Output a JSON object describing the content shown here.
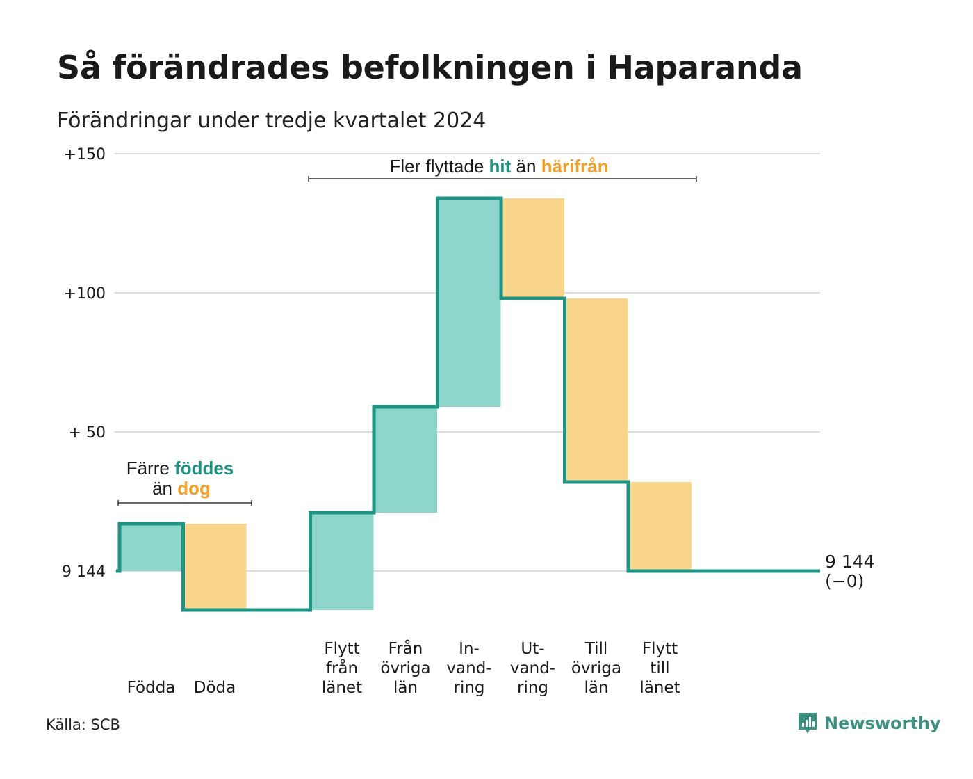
{
  "title": "Så förändrades befolkningen i Haparanda",
  "subtitle": "Förändringar under tredje kvartalet 2024",
  "source": "Källa: SCB",
  "brand": {
    "name": "Newsworthy",
    "icon": "newsworthy-logo-icon",
    "color": "#3a8f7f"
  },
  "colors": {
    "increase": "#8ed5cc",
    "decrease": "#fad58c",
    "line": "#1f9384",
    "accent_teal": "#1f9384",
    "accent_orange": "#f0a02b",
    "grid": "#dddddd"
  },
  "chart_data": {
    "type": "waterfall",
    "title": "Så förändrades befolkningen i Haparanda",
    "subtitle": "Förändringar under tredje kvartalet 2024",
    "base_label": "9 144",
    "ylim": [
      -20,
      150
    ],
    "grid": true,
    "y_ticks": [
      {
        "value": 150,
        "label": "+150"
      },
      {
        "value": 100,
        "label": "+100"
      },
      {
        "value": 50,
        "label": "+ 50"
      },
      {
        "value": 0,
        "label": "9 144"
      }
    ],
    "steps": [
      {
        "name": "Födda",
        "label_lines": [
          "Födda"
        ],
        "value": 17,
        "kind": "increase"
      },
      {
        "name": "Döda",
        "label_lines": [
          "Döda"
        ],
        "value": -31,
        "kind": "decrease"
      },
      {
        "name": "Flytt från länet",
        "label_lines": [
          "Flytt",
          "från",
          "länet"
        ],
        "value": 35,
        "kind": "increase",
        "slot": 3
      },
      {
        "name": "Från övriga län",
        "label_lines": [
          "Från",
          "övriga",
          "län"
        ],
        "value": 38,
        "kind": "increase",
        "slot": 4
      },
      {
        "name": "Invandring",
        "label_lines": [
          "In-",
          "vand-",
          "ring"
        ],
        "value": 75,
        "kind": "increase",
        "slot": 5
      },
      {
        "name": "Utvandring",
        "label_lines": [
          "Ut-",
          "vand-",
          "ring"
        ],
        "value": -36,
        "kind": "decrease",
        "slot": 6
      },
      {
        "name": "Till övriga län",
        "label_lines": [
          "Till",
          "övriga",
          "län"
        ],
        "value": -66,
        "kind": "decrease",
        "slot": 7
      },
      {
        "name": "Flytt till länet",
        "label_lines": [
          "Flytt",
          "till",
          "länet"
        ],
        "value": -32,
        "kind": "decrease",
        "slot": 8
      }
    ],
    "end_label": [
      "9 144",
      "(−0)"
    ],
    "annotations": [
      {
        "parts": [
          {
            "text": "Färre ",
            "style": "plain"
          },
          {
            "text": "föddes",
            "style": "teal"
          }
        ],
        "parts2": [
          {
            "text": "än ",
            "style": "plain"
          },
          {
            "text": "dog",
            "style": "orange"
          }
        ],
        "span": [
          "Födda",
          "Döda"
        ]
      },
      {
        "parts": [
          {
            "text": "Fler flyttade ",
            "style": "plain"
          },
          {
            "text": "hit",
            "style": "teal"
          },
          {
            "text": " än ",
            "style": "plain"
          },
          {
            "text": "härifrån",
            "style": "orange"
          }
        ],
        "span": [
          "Flytt från länet",
          "Flytt till länet"
        ]
      }
    ]
  }
}
